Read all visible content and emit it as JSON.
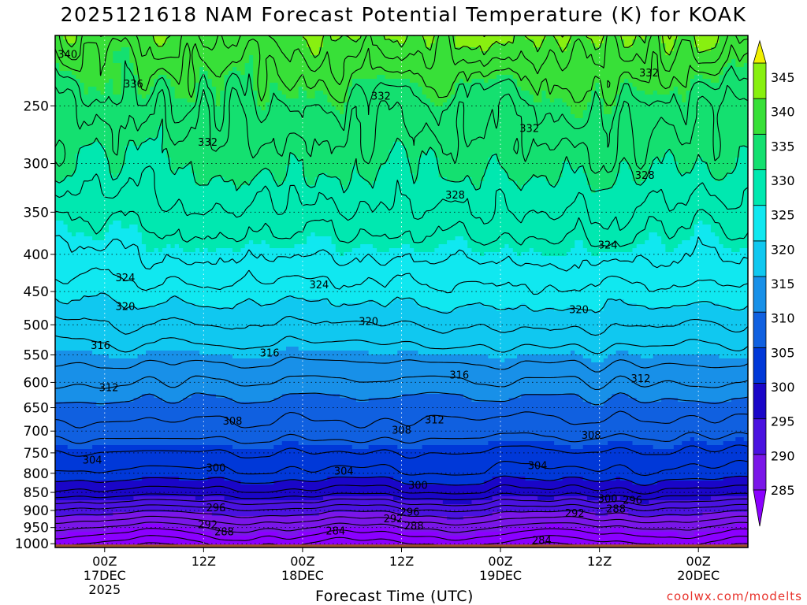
{
  "chart_data": {
    "type": "heatmap",
    "title": "2025121618 NAM Forecast Potential Temperature (K) for KOAK",
    "xlabel": "Forecast Time (UTC)",
    "ylabel": "",
    "y_axis": {
      "scale": "log-pressure",
      "ticks": [
        250,
        300,
        350,
        400,
        450,
        500,
        550,
        600,
        650,
        700,
        750,
        800,
        850,
        900,
        950,
        1000
      ],
      "range": [
        1012,
        200
      ]
    },
    "x_axis": {
      "ticks": [
        {
          "hours": 6,
          "lines": [
            "00Z",
            "17DEC",
            "2025"
          ]
        },
        {
          "hours": 18,
          "lines": [
            "12Z",
            "",
            ""
          ]
        },
        {
          "hours": 30,
          "lines": [
            "00Z",
            "18DEC",
            ""
          ]
        },
        {
          "hours": 42,
          "lines": [
            "12Z",
            "",
            ""
          ]
        },
        {
          "hours": 54,
          "lines": [
            "00Z",
            "19DEC",
            ""
          ]
        },
        {
          "hours": 66,
          "lines": [
            "12Z",
            "",
            ""
          ]
        },
        {
          "hours": 78,
          "lines": [
            "00Z",
            "20DEC",
            ""
          ]
        }
      ],
      "range_hours": [
        0,
        84
      ]
    },
    "colorbar": {
      "labels": [
        "345",
        "340",
        "335",
        "330",
        "325",
        "320",
        "315",
        "310",
        "305",
        "300",
        "295",
        "290",
        "285"
      ],
      "bands": [
        {
          "from": 280,
          "to": 285,
          "color": "#8b00ff"
        },
        {
          "from": 285,
          "to": 290,
          "color": "#7a16e8"
        },
        {
          "from": 290,
          "to": 295,
          "color": "#4a12e0"
        },
        {
          "from": 295,
          "to": 300,
          "color": "#1a06c8"
        },
        {
          "from": 300,
          "to": 305,
          "color": "#0038d8"
        },
        {
          "from": 305,
          "to": 310,
          "color": "#1060e0"
        },
        {
          "from": 310,
          "to": 315,
          "color": "#1890e8"
        },
        {
          "from": 315,
          "to": 320,
          "color": "#10c8f0"
        },
        {
          "from": 320,
          "to": 325,
          "color": "#10e8f0"
        },
        {
          "from": 325,
          "to": 330,
          "color": "#00e8b0"
        },
        {
          "from": 330,
          "to": 335,
          "color": "#14e070"
        },
        {
          "from": 335,
          "to": 340,
          "color": "#38e038"
        },
        {
          "from": 340,
          "to": 345,
          "color": "#88f010"
        },
        {
          "from": 345,
          "to": 350,
          "color": "#f0f000"
        }
      ]
    },
    "profile": [
      {
        "p": 1000,
        "theta": 283
      },
      {
        "p": 950,
        "theta": 287
      },
      {
        "p": 900,
        "theta": 292
      },
      {
        "p": 850,
        "theta": 298
      },
      {
        "p": 800,
        "theta": 302
      },
      {
        "p": 750,
        "theta": 304
      },
      {
        "p": 700,
        "theta": 307
      },
      {
        "p": 650,
        "theta": 309
      },
      {
        "p": 600,
        "theta": 312
      },
      {
        "p": 550,
        "theta": 315
      },
      {
        "p": 500,
        "theta": 318
      },
      {
        "p": 450,
        "theta": 321
      },
      {
        "p": 400,
        "theta": 324
      },
      {
        "p": 350,
        "theta": 327
      },
      {
        "p": 300,
        "theta": 330
      },
      {
        "p": 250,
        "theta": 333
      },
      {
        "p": 200,
        "theta": 339
      }
    ],
    "contour_interval": 2,
    "contour_labels": [
      {
        "text": "340",
        "hours": 1.5,
        "p": 212
      },
      {
        "text": "336",
        "hours": 9.5,
        "p": 233
      },
      {
        "text": "332",
        "hours": 18.5,
        "p": 280
      },
      {
        "text": "332",
        "hours": 39.5,
        "p": 242
      },
      {
        "text": "332",
        "hours": 57.5,
        "p": 268
      },
      {
        "text": "332",
        "hours": 72,
        "p": 225
      },
      {
        "text": "328",
        "hours": 48.5,
        "p": 331
      },
      {
        "text": "328",
        "hours": 71.5,
        "p": 311
      },
      {
        "text": "324",
        "hours": 8.5,
        "p": 430
      },
      {
        "text": "324",
        "hours": 32,
        "p": 440
      },
      {
        "text": "324",
        "hours": 67,
        "p": 388
      },
      {
        "text": "320",
        "hours": 8.5,
        "p": 471
      },
      {
        "text": "320",
        "hours": 38,
        "p": 494
      },
      {
        "text": "320",
        "hours": 63.5,
        "p": 476
      },
      {
        "text": "316",
        "hours": 5.5,
        "p": 533
      },
      {
        "text": "316",
        "hours": 26,
        "p": 546
      },
      {
        "text": "316",
        "hours": 49,
        "p": 585
      },
      {
        "text": "312",
        "hours": 6.5,
        "p": 609
      },
      {
        "text": "312",
        "hours": 46,
        "p": 675
      },
      {
        "text": "312",
        "hours": 71,
        "p": 592
      },
      {
        "text": "308",
        "hours": 21.5,
        "p": 677
      },
      {
        "text": "308",
        "hours": 42,
        "p": 697
      },
      {
        "text": "308",
        "hours": 65,
        "p": 708
      },
      {
        "text": "304",
        "hours": 4.5,
        "p": 766
      },
      {
        "text": "304",
        "hours": 35,
        "p": 794
      },
      {
        "text": "304",
        "hours": 58.5,
        "p": 780
      },
      {
        "text": "300",
        "hours": 19.5,
        "p": 786
      },
      {
        "text": "300",
        "hours": 44,
        "p": 830
      },
      {
        "text": "300",
        "hours": 67,
        "p": 866
      },
      {
        "text": "296",
        "hours": 19.5,
        "p": 891
      },
      {
        "text": "296",
        "hours": 43,
        "p": 903
      },
      {
        "text": "296",
        "hours": 70,
        "p": 870
      },
      {
        "text": "292",
        "hours": 18.5,
        "p": 940
      },
      {
        "text": "292",
        "hours": 41,
        "p": 923
      },
      {
        "text": "292",
        "hours": 63,
        "p": 907
      },
      {
        "text": "288",
        "hours": 20.5,
        "p": 962
      },
      {
        "text": "288",
        "hours": 43.5,
        "p": 944
      },
      {
        "text": "288",
        "hours": 68,
        "p": 895
      },
      {
        "text": "284",
        "hours": 34,
        "p": 959
      },
      {
        "text": "284",
        "hours": 59,
        "p": 988
      }
    ],
    "ground_color": "#a0522d",
    "grid": true
  },
  "credit": "coolwx.com/modelts"
}
